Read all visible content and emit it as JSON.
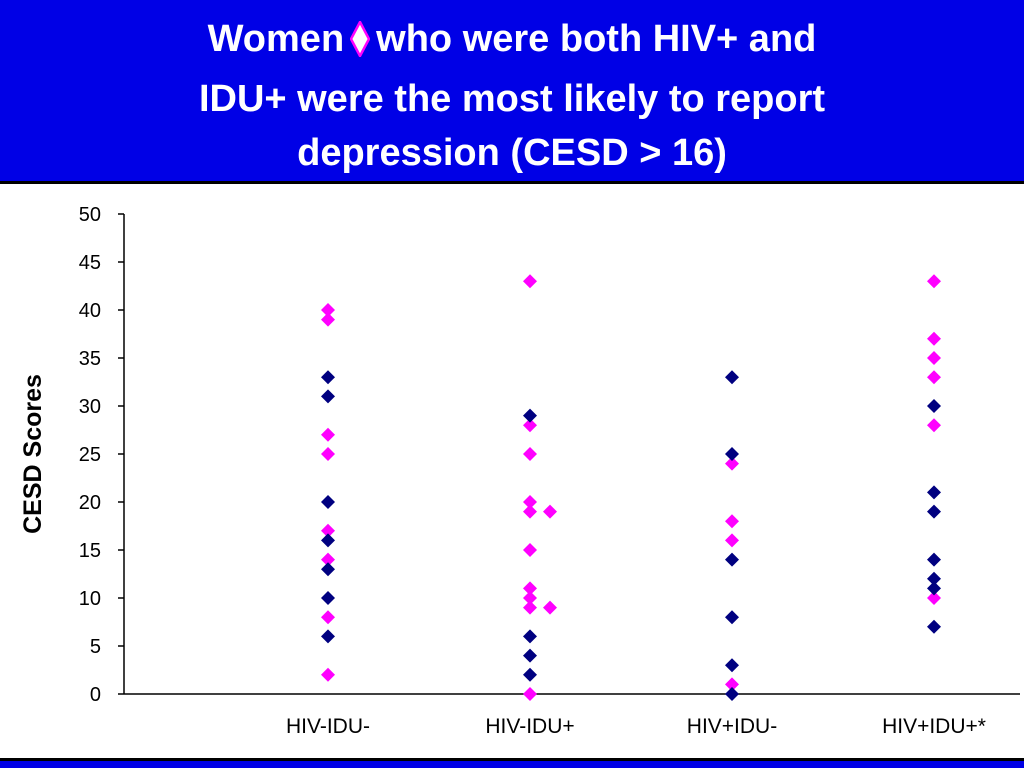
{
  "header": {
    "title_line1_before": "Women",
    "title_line1_after": "who were both HIV+ and",
    "title_line2": "IDU+ were the most likely to report",
    "title_line3": "depression (CESD > 16)",
    "diamond_icon": "pink-diamond-outline"
  },
  "colors": {
    "background": "#0000e6",
    "title_text": "#ffffff",
    "series_pink": "#ff00ff",
    "series_navy": "#000080"
  },
  "chart_data": {
    "type": "scatter",
    "title": "Women who were both HIV+ and IDU+ were the most likely to report depression (CESD > 16)",
    "xlabel": "",
    "ylabel": "CESD Scores",
    "ylim": [
      0,
      50
    ],
    "yticks": [
      0,
      5,
      10,
      15,
      20,
      25,
      30,
      35,
      40,
      45,
      50
    ],
    "categories": [
      "HIV-IDU-",
      "HIV-IDU+",
      "HIV+IDU-",
      "HIV+IDU+*"
    ],
    "grid": false,
    "legend": "none",
    "series": [
      {
        "color": "#ff00ff",
        "points": [
          {
            "cat": 0,
            "y": 40,
            "offset": 0
          },
          {
            "cat": 0,
            "y": 39,
            "offset": 0
          },
          {
            "cat": 0,
            "y": 27,
            "offset": 0
          },
          {
            "cat": 0,
            "y": 25,
            "offset": 0
          },
          {
            "cat": 0,
            "y": 17,
            "offset": 0
          },
          {
            "cat": 0,
            "y": 14,
            "offset": 0
          },
          {
            "cat": 0,
            "y": 8,
            "offset": 0
          },
          {
            "cat": 0,
            "y": 2,
            "offset": 0
          },
          {
            "cat": 1,
            "y": 43,
            "offset": 0
          },
          {
            "cat": 1,
            "y": 28,
            "offset": 0
          },
          {
            "cat": 1,
            "y": 25,
            "offset": 0
          },
          {
            "cat": 1,
            "y": 20,
            "offset": 0
          },
          {
            "cat": 1,
            "y": 19,
            "offset": 0
          },
          {
            "cat": 1,
            "y": 19,
            "offset": 1
          },
          {
            "cat": 1,
            "y": 15,
            "offset": 0
          },
          {
            "cat": 1,
            "y": 11,
            "offset": 0
          },
          {
            "cat": 1,
            "y": 10,
            "offset": 0
          },
          {
            "cat": 1,
            "y": 9,
            "offset": 0
          },
          {
            "cat": 1,
            "y": 9,
            "offset": 1
          },
          {
            "cat": 1,
            "y": 0,
            "offset": 0
          },
          {
            "cat": 2,
            "y": 24,
            "offset": 0
          },
          {
            "cat": 2,
            "y": 18,
            "offset": 0
          },
          {
            "cat": 2,
            "y": 16,
            "offset": 0
          },
          {
            "cat": 2,
            "y": 1,
            "offset": 0
          },
          {
            "cat": 3,
            "y": 43,
            "offset": 0
          },
          {
            "cat": 3,
            "y": 37,
            "offset": 0
          },
          {
            "cat": 3,
            "y": 35,
            "offset": 0
          },
          {
            "cat": 3,
            "y": 33,
            "offset": 0
          },
          {
            "cat": 3,
            "y": 28,
            "offset": 0
          },
          {
            "cat": 3,
            "y": 10,
            "offset": 0
          }
        ]
      },
      {
        "color": "#000080",
        "points": [
          {
            "cat": 0,
            "y": 33,
            "offset": 0
          },
          {
            "cat": 0,
            "y": 31,
            "offset": 0
          },
          {
            "cat": 0,
            "y": 20,
            "offset": 0
          },
          {
            "cat": 0,
            "y": 16,
            "offset": 0
          },
          {
            "cat": 0,
            "y": 13,
            "offset": 0
          },
          {
            "cat": 0,
            "y": 10,
            "offset": 0
          },
          {
            "cat": 0,
            "y": 6,
            "offset": 0
          },
          {
            "cat": 1,
            "y": 29,
            "offset": 0
          },
          {
            "cat": 1,
            "y": 6,
            "offset": 0
          },
          {
            "cat": 1,
            "y": 4,
            "offset": 0
          },
          {
            "cat": 1,
            "y": 2,
            "offset": 0
          },
          {
            "cat": 2,
            "y": 33,
            "offset": 0
          },
          {
            "cat": 2,
            "y": 25,
            "offset": 0
          },
          {
            "cat": 2,
            "y": 14,
            "offset": 0
          },
          {
            "cat": 2,
            "y": 8,
            "offset": 0
          },
          {
            "cat": 2,
            "y": 3,
            "offset": 0
          },
          {
            "cat": 2,
            "y": 0,
            "offset": 0
          },
          {
            "cat": 3,
            "y": 30,
            "offset": 0
          },
          {
            "cat": 3,
            "y": 21,
            "offset": 0
          },
          {
            "cat": 3,
            "y": 19,
            "offset": 0
          },
          {
            "cat": 3,
            "y": 14,
            "offset": 0
          },
          {
            "cat": 3,
            "y": 12,
            "offset": 0
          },
          {
            "cat": 3,
            "y": 11,
            "offset": 0
          },
          {
            "cat": 3,
            "y": 7,
            "offset": 0
          }
        ]
      }
    ]
  }
}
